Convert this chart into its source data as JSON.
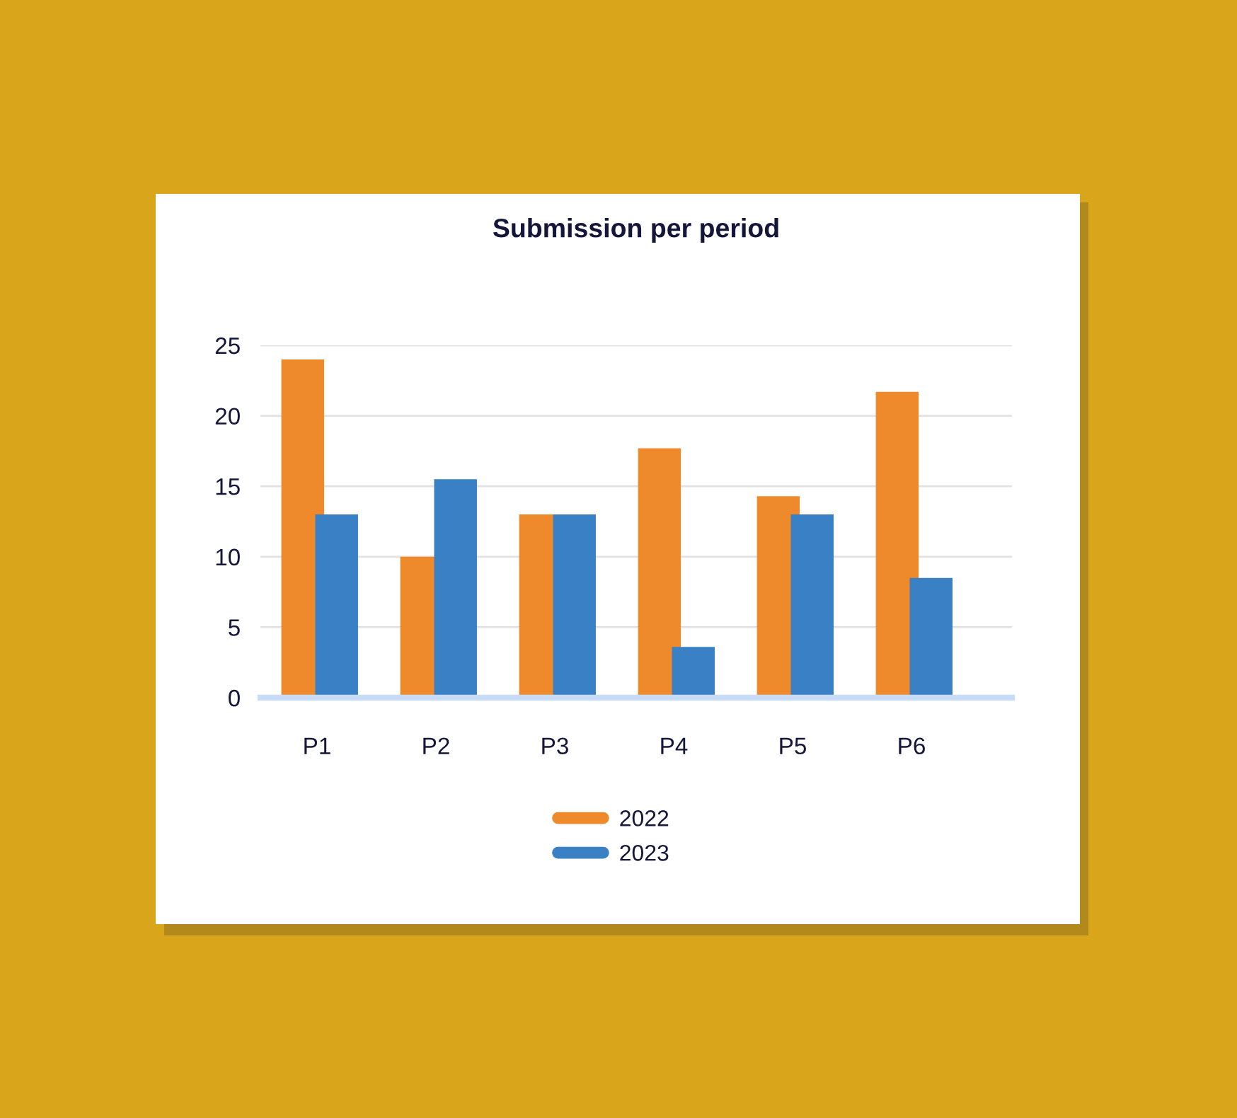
{
  "chart_data": {
    "type": "bar",
    "title": "Submission per period",
    "categories": [
      "P1",
      "P2",
      "P3",
      "P4",
      "P5",
      "P6"
    ],
    "series": [
      {
        "name": "2022",
        "color": "#ef8a2c",
        "values": [
          24,
          10,
          13,
          17.7,
          14.3,
          21.7
        ]
      },
      {
        "name": "2023",
        "color": "#3a80c4",
        "values": [
          13,
          15.5,
          13,
          3.6,
          13,
          8.5
        ]
      }
    ],
    "ylim": [
      0,
      25
    ],
    "yticks": [
      0,
      5,
      10,
      15,
      20,
      25
    ],
    "grid": "y",
    "legend": "bottom"
  }
}
